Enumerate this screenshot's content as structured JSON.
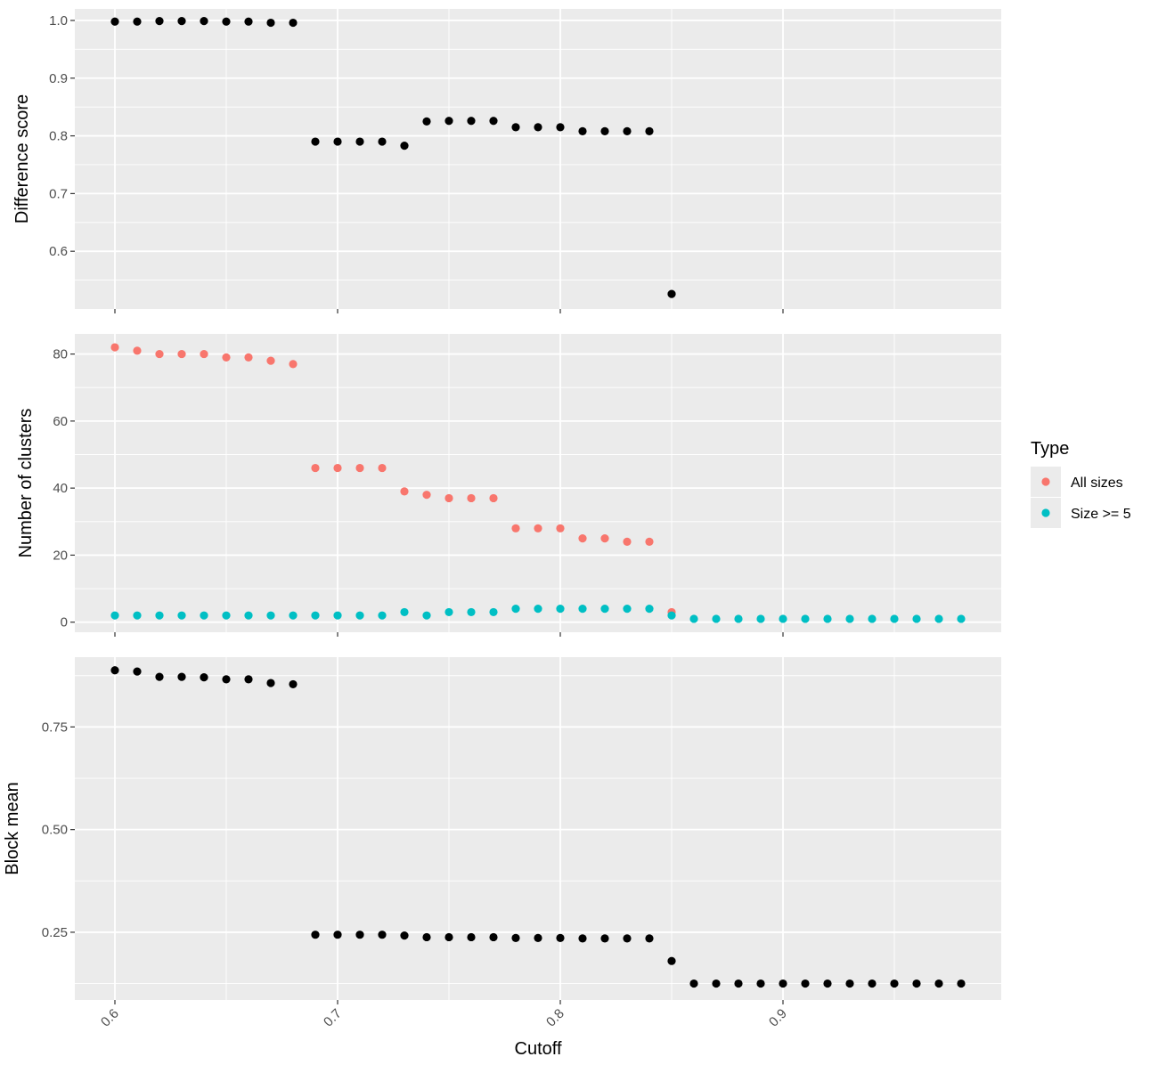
{
  "chart_data": {
    "type": "scatter",
    "x_label": "Cutoff",
    "xlim": [
      0.582,
      0.998
    ],
    "x_ticks": [
      0.6,
      0.7,
      0.8,
      0.9
    ],
    "x_tick_labels": [
      "0.6",
      "0.7",
      "0.8",
      "0.9"
    ],
    "x_tick_label_angle": -45,
    "grid": true,
    "background": "#EBEBEB",
    "grid_color": "#FFFFFF",
    "legend": {
      "title": "Type",
      "position": "right",
      "entries": [
        {
          "label": "All sizes",
          "color": "#F8766D"
        },
        {
          "label": "Size >= 5",
          "color": "#00BFC4"
        }
      ]
    },
    "panels": [
      {
        "id": "difference-score",
        "ylabel": "Difference score",
        "ylim": [
          0.5,
          1.02
        ],
        "y_ticks": [
          0.6,
          0.7,
          0.8,
          0.9,
          1.0
        ],
        "y_tick_labels": [
          "0.6",
          "0.7",
          "0.8",
          "0.9",
          "1.0"
        ],
        "series": [
          {
            "color": "#000000",
            "x": [
              0.6,
              0.61,
              0.62,
              0.63,
              0.64,
              0.65,
              0.66,
              0.67,
              0.68,
              0.69,
              0.7,
              0.71,
              0.72,
              0.73,
              0.74,
              0.75,
              0.76,
              0.77,
              0.78,
              0.79,
              0.8,
              0.81,
              0.82,
              0.83,
              0.84,
              0.85
            ],
            "y": [
              0.998,
              0.998,
              0.999,
              0.999,
              0.999,
              0.998,
              0.998,
              0.996,
              0.996,
              0.79,
              0.79,
              0.79,
              0.79,
              0.783,
              0.825,
              0.826,
              0.826,
              0.826,
              0.815,
              0.815,
              0.815,
              0.808,
              0.808,
              0.808,
              0.808,
              0.526
            ]
          }
        ]
      },
      {
        "id": "number-of-clusters",
        "ylabel": "Number of clusters",
        "ylim": [
          -3,
          86
        ],
        "y_ticks": [
          0,
          20,
          40,
          60,
          80
        ],
        "y_tick_labels": [
          "0",
          "20",
          "40",
          "60",
          "80"
        ],
        "series": [
          {
            "name": "All sizes",
            "color": "#F8766D",
            "x": [
              0.6,
              0.61,
              0.62,
              0.63,
              0.64,
              0.65,
              0.66,
              0.67,
              0.68,
              0.69,
              0.7,
              0.71,
              0.72,
              0.73,
              0.74,
              0.75,
              0.76,
              0.77,
              0.78,
              0.79,
              0.8,
              0.81,
              0.82,
              0.83,
              0.84,
              0.85
            ],
            "y": [
              82,
              81,
              80,
              80,
              80,
              79,
              79,
              78,
              77,
              46,
              46,
              46,
              46,
              39,
              38,
              37,
              37,
              37,
              28,
              28,
              28,
              25,
              25,
              24,
              24,
              3
            ]
          },
          {
            "name": "Size >= 5",
            "color": "#00BFC4",
            "x": [
              0.6,
              0.61,
              0.62,
              0.63,
              0.64,
              0.65,
              0.66,
              0.67,
              0.68,
              0.69,
              0.7,
              0.71,
              0.72,
              0.73,
              0.74,
              0.75,
              0.76,
              0.77,
              0.78,
              0.79,
              0.8,
              0.81,
              0.82,
              0.83,
              0.84,
              0.85,
              0.86,
              0.87,
              0.88,
              0.89,
              0.9,
              0.91,
              0.92,
              0.93,
              0.94,
              0.95,
              0.96,
              0.97,
              0.98
            ],
            "y": [
              2,
              2,
              2,
              2,
              2,
              2,
              2,
              2,
              2,
              2,
              2,
              2,
              2,
              3,
              2,
              3,
              3,
              3,
              4,
              4,
              4,
              4,
              4,
              4,
              4,
              2,
              1,
              1,
              1,
              1,
              1,
              1,
              1,
              1,
              1,
              1,
              1,
              1,
              1
            ]
          }
        ]
      },
      {
        "id": "block-mean",
        "ylabel": "Block mean",
        "ylim": [
          0.085,
          0.92
        ],
        "y_ticks": [
          0.25,
          0.5,
          0.75
        ],
        "y_tick_labels": [
          "0.25",
          "0.50",
          "0.75"
        ],
        "series": [
          {
            "color": "#000000",
            "x": [
              0.6,
              0.61,
              0.62,
              0.63,
              0.64,
              0.65,
              0.66,
              0.67,
              0.68,
              0.69,
              0.7,
              0.71,
              0.72,
              0.73,
              0.74,
              0.75,
              0.76,
              0.77,
              0.78,
              0.79,
              0.8,
              0.81,
              0.82,
              0.83,
              0.84,
              0.85,
              0.86,
              0.87,
              0.88,
              0.89,
              0.9,
              0.91,
              0.92,
              0.93,
              0.94,
              0.95,
              0.96,
              0.97,
              0.98
            ],
            "y": [
              0.888,
              0.885,
              0.872,
              0.872,
              0.871,
              0.866,
              0.866,
              0.857,
              0.854,
              0.244,
              0.244,
              0.244,
              0.244,
              0.242,
              0.238,
              0.238,
              0.238,
              0.238,
              0.236,
              0.236,
              0.236,
              0.235,
              0.235,
              0.235,
              0.235,
              0.18,
              0.125,
              0.125,
              0.125,
              0.125,
              0.125,
              0.125,
              0.125,
              0.125,
              0.125,
              0.125,
              0.125,
              0.125,
              0.125
            ]
          }
        ]
      }
    ]
  }
}
